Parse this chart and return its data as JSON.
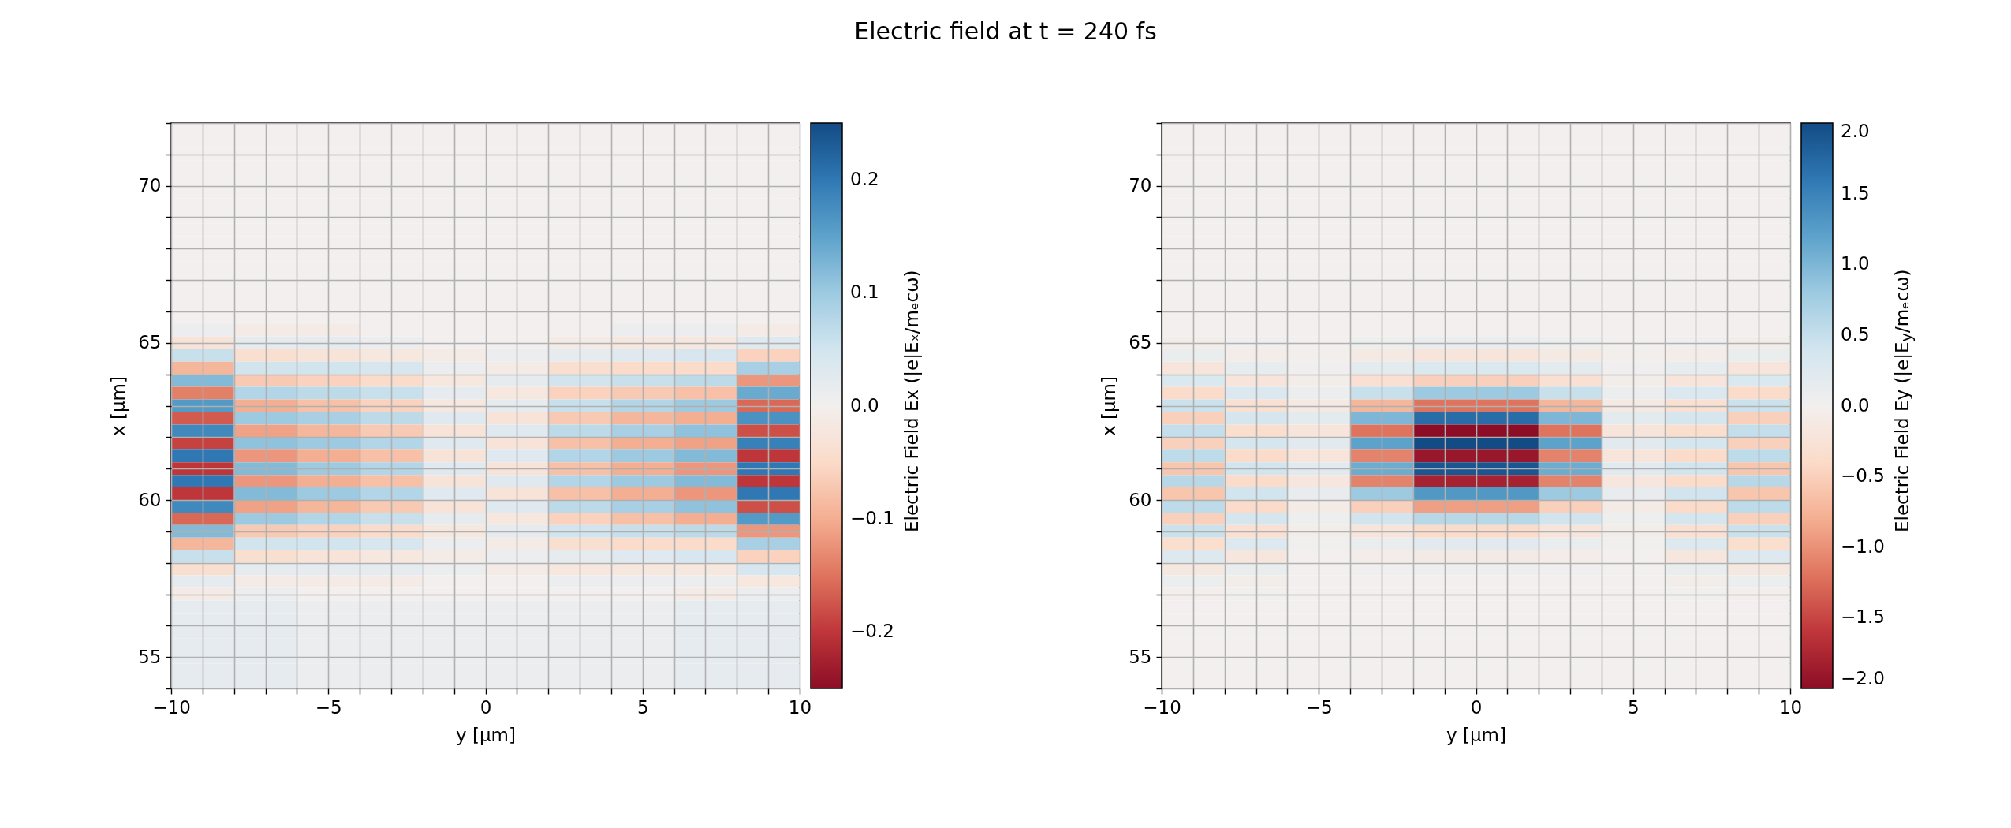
{
  "chart_data": [
    {
      "type": "other",
      "title": "Electric field at t = 240 fs"
    },
    {
      "type": "heatmap",
      "xlabel": "y [µm]",
      "ylabel": "x [µm]",
      "clabel": "Electric Field Ex (|e|Eₓ/mₑcω)",
      "xlim": [
        -10,
        10
      ],
      "ylim": [
        54,
        72
      ],
      "xticks": [
        -10,
        {
          "value": -9,
          "label": null
        },
        {
          "value": -8,
          "label": null
        },
        {
          "value": -7,
          "label": null
        },
        {
          "value": -6,
          "label": null
        },
        -5,
        {
          "value": -4,
          "label": null
        },
        {
          "value": -3,
          "label": null
        },
        {
          "value": -2,
          "label": null
        },
        {
          "value": -1,
          "label": null
        },
        0,
        {
          "value": 1,
          "label": null
        },
        {
          "value": 2,
          "label": null
        },
        {
          "value": 3,
          "label": null
        },
        {
          "value": 4,
          "label": null
        },
        5,
        {
          "value": 6,
          "label": null
        },
        {
          "value": 7,
          "label": null
        },
        {
          "value": 8,
          "label": null
        },
        {
          "value": 9,
          "label": null
        },
        10
      ],
      "yticks": [
        {
          "value": 54,
          "label": null
        },
        55,
        {
          "value": 56,
          "label": null
        },
        {
          "value": 57,
          "label": null
        },
        {
          "value": 58,
          "label": null
        },
        {
          "value": 59,
          "label": null
        },
        60,
        {
          "value": 61,
          "label": null
        },
        {
          "value": 62,
          "label": null
        },
        {
          "value": 63,
          "label": null
        },
        {
          "value": 64,
          "label": null
        },
        65,
        {
          "value": 66,
          "label": null
        },
        {
          "value": 67,
          "label": null
        },
        {
          "value": 68,
          "label": null
        },
        {
          "value": 69,
          "label": null
        },
        70,
        {
          "value": 71,
          "label": null
        },
        {
          "value": 72,
          "label": null
        }
      ],
      "clim": [
        -0.25,
        0.25
      ],
      "cticks": [
        {
          "value": -0.2,
          "label": "−0.2"
        },
        {
          "value": -0.1,
          "label": "−0.1"
        },
        {
          "value": 0,
          "label": "0.0"
        },
        {
          "value": 0.1,
          "label": "0.1"
        },
        {
          "value": 0.2,
          "label": "0.2"
        }
      ],
      "grid": true,
      "cells": [
        [
          0,
          0,
          0,
          0,
          0,
          0,
          0,
          0,
          0,
          0
        ],
        [
          0,
          0,
          0,
          0,
          0,
          0,
          0,
          0,
          0,
          0
        ],
        [
          0,
          0,
          0,
          0,
          0,
          0,
          0,
          0,
          0,
          0
        ],
        [
          0,
          0,
          0,
          0,
          0,
          0,
          0,
          0,
          0,
          0
        ],
        [
          0,
          0,
          0,
          0,
          0,
          0,
          0,
          0,
          0,
          0
        ],
        [
          0,
          0,
          0,
          0,
          0,
          0,
          0,
          0,
          0,
          0
        ],
        [
          0,
          0,
          0,
          0,
          0,
          0,
          0,
          0,
          0,
          0
        ],
        [
          0,
          0,
          0,
          0,
          0,
          0,
          0,
          0,
          0,
          0
        ],
        [
          0,
          0,
          0,
          0,
          0,
          0,
          0,
          0,
          0,
          0
        ],
        [
          0,
          0,
          0,
          0,
          0,
          0,
          0,
          0,
          0,
          0
        ],
        [
          0,
          0,
          0,
          0,
          0,
          0,
          0,
          0,
          0,
          0
        ],
        [
          0,
          0,
          0,
          0,
          0,
          0,
          0,
          0,
          0,
          0
        ],
        [
          0,
          0,
          0,
          0,
          0,
          0,
          0,
          0,
          0,
          0
        ],
        [
          0,
          0,
          0,
          0,
          0,
          0,
          0,
          0,
          0,
          0
        ],
        [
          0,
          0,
          0,
          0,
          0,
          0,
          0,
          0,
          0,
          0
        ],
        [
          0,
          0,
          0,
          0,
          0,
          0,
          0,
          0,
          0,
          0
        ],
        [
          0.01,
          -0.01,
          -0.01,
          0,
          0,
          0,
          0,
          0.01,
          0.01,
          -0.01
        ],
        [
          -0.03,
          0.02,
          0.02,
          0.01,
          0,
          0,
          -0.01,
          -0.02,
          -0.02,
          0.03
        ],
        [
          0.06,
          -0.04,
          -0.03,
          -0.02,
          -0.01,
          0.01,
          0.02,
          0.03,
          0.04,
          -0.06
        ],
        [
          -0.09,
          0.05,
          0.05,
          0.04,
          0.01,
          -0.01,
          -0.04,
          -0.05,
          -0.05,
          0.09
        ],
        [
          0.12,
          -0.07,
          -0.06,
          -0.05,
          -0.02,
          0.02,
          0.05,
          0.06,
          0.07,
          -0.12
        ],
        [
          -0.14,
          0.08,
          0.07,
          0.06,
          0.02,
          -0.02,
          -0.06,
          -0.07,
          -0.08,
          0.14
        ],
        [
          0.16,
          -0.1,
          -0.08,
          -0.06,
          -0.02,
          0.02,
          0.06,
          0.08,
          0.1,
          -0.16
        ],
        [
          -0.17,
          0.1,
          0.09,
          0.07,
          0.03,
          -0.03,
          -0.07,
          -0.09,
          -0.1,
          0.17
        ],
        [
          0.18,
          -0.11,
          -0.09,
          -0.07,
          -0.03,
          0.03,
          0.07,
          0.09,
          0.11,
          -0.18
        ],
        [
          -0.19,
          0.11,
          0.1,
          0.08,
          0.03,
          -0.03,
          -0.08,
          -0.1,
          -0.11,
          0.19
        ],
        [
          0.2,
          -0.12,
          -0.1,
          -0.08,
          -0.03,
          0.03,
          0.08,
          0.1,
          0.12,
          -0.2
        ],
        [
          -0.2,
          0.12,
          0.1,
          0.08,
          0.03,
          -0.03,
          -0.08,
          -0.1,
          -0.12,
          0.2
        ],
        [
          0.2,
          -0.12,
          -0.1,
          -0.08,
          -0.03,
          0.03,
          0.08,
          0.1,
          0.12,
          -0.2
        ],
        [
          -0.2,
          0.12,
          0.1,
          0.08,
          0.03,
          -0.03,
          -0.08,
          -0.1,
          -0.12,
          0.2
        ],
        [
          0.18,
          -0.11,
          -0.09,
          -0.07,
          -0.03,
          0.03,
          0.07,
          0.09,
          0.11,
          -0.18
        ],
        [
          -0.16,
          0.1,
          0.08,
          0.06,
          0.02,
          -0.02,
          -0.06,
          -0.08,
          -0.1,
          0.16
        ],
        [
          0.12,
          -0.07,
          -0.06,
          -0.05,
          -0.02,
          0.02,
          0.05,
          0.06,
          0.07,
          -0.12
        ],
        [
          -0.09,
          0.05,
          0.05,
          0.04,
          0.01,
          -0.01,
          -0.04,
          -0.05,
          -0.05,
          0.09
        ],
        [
          0.06,
          -0.04,
          -0.03,
          -0.02,
          -0.01,
          0.01,
          0.02,
          0.03,
          0.04,
          -0.06
        ],
        [
          -0.04,
          0.02,
          0.02,
          0.02,
          0.01,
          -0.01,
          -0.02,
          -0.02,
          -0.02,
          0.04
        ],
        [
          0.02,
          -0.01,
          -0.01,
          -0.01,
          0,
          0,
          0.01,
          0.01,
          0.01,
          -0.02
        ],
        [
          -0.01,
          0.01,
          0,
          0,
          0,
          0,
          0,
          0,
          -0.01,
          0.01
        ],
        [
          0.02,
          0.02,
          0.01,
          0.01,
          0.01,
          0.01,
          0.01,
          0.01,
          0.02,
          0.02
        ],
        [
          0.02,
          0.02,
          0.01,
          0.01,
          0.01,
          0.01,
          0.01,
          0.01,
          0.02,
          0.02
        ],
        [
          0.02,
          0.02,
          0.01,
          0.01,
          0.01,
          0.01,
          0.01,
          0.01,
          0.02,
          0.02
        ],
        [
          0.02,
          0.02,
          0.01,
          0.01,
          0.01,
          0.01,
          0.01,
          0.01,
          0.02,
          0.02
        ],
        [
          0.02,
          0.02,
          0.01,
          0.01,
          0.01,
          0.01,
          0.01,
          0.01,
          0.02,
          0.02
        ],
        [
          0.02,
          0.02,
          0.01,
          0.01,
          0.01,
          0.01,
          0.01,
          0.01,
          0.02,
          0.02
        ],
        [
          0.02,
          0.02,
          0.01,
          0.01,
          0.01,
          0.01,
          0.01,
          0.01,
          0.02,
          0.02
        ]
      ]
    },
    {
      "type": "heatmap",
      "xlabel": "y [µm]",
      "ylabel": "x [µm]",
      "clabel": "Electric Field Ey (|e|E$_{y}$/mₑcω)",
      "xlim": [
        -10,
        10
      ],
      "ylim": [
        54,
        72
      ],
      "xticks": [
        -10,
        {
          "value": -9,
          "label": null
        },
        {
          "value": -8,
          "label": null
        },
        {
          "value": -7,
          "label": null
        },
        {
          "value": -6,
          "label": null
        },
        -5,
        {
          "value": -4,
          "label": null
        },
        {
          "value": -3,
          "label": null
        },
        {
          "value": -2,
          "label": null
        },
        {
          "value": -1,
          "label": null
        },
        0,
        {
          "value": 1,
          "label": null
        },
        {
          "value": 2,
          "label": null
        },
        {
          "value": 3,
          "label": null
        },
        {
          "value": 4,
          "label": null
        },
        5,
        {
          "value": 6,
          "label": null
        },
        {
          "value": 7,
          "label": null
        },
        {
          "value": 8,
          "label": null
        },
        {
          "value": 9,
          "label": null
        },
        10
      ],
      "yticks": [
        {
          "value": 54,
          "label": null
        },
        55,
        {
          "value": 56,
          "label": null
        },
        {
          "value": 57,
          "label": null
        },
        {
          "value": 58,
          "label": null
        },
        {
          "value": 59,
          "label": null
        },
        60,
        {
          "value": 61,
          "label": null
        },
        {
          "value": 62,
          "label": null
        },
        {
          "value": 63,
          "label": null
        },
        {
          "value": 64,
          "label": null
        },
        65,
        {
          "value": 66,
          "label": null
        },
        {
          "value": 67,
          "label": null
        },
        {
          "value": 68,
          "label": null
        },
        {
          "value": 69,
          "label": null
        },
        70,
        {
          "value": 71,
          "label": null
        },
        {
          "value": 72,
          "label": null
        }
      ],
      "clim": [
        -2,
        2
      ],
      "cticks": [
        {
          "value": -2,
          "label": "−2.0"
        },
        {
          "value": -1.5,
          "label": "−1.5"
        },
        {
          "value": -1,
          "label": "−1.0"
        },
        {
          "value": -0.5,
          "label": "−0.5"
        },
        {
          "value": 0,
          "label": "0.0"
        },
        {
          "value": 0.5,
          "label": "0.5"
        },
        {
          "value": 1,
          "label": "1.0"
        },
        {
          "value": 1.5,
          "label": "1.5"
        },
        {
          "value": 2,
          "label": "2.0"
        }
      ],
      "grid": true,
      "cells": [
        [
          0,
          0,
          0,
          0,
          0,
          0,
          0,
          0,
          0,
          0
        ],
        [
          0,
          0,
          0,
          0,
          0,
          0,
          0,
          0,
          0,
          0
        ],
        [
          0,
          0,
          0,
          0,
          0,
          0,
          0,
          0,
          0,
          0
        ],
        [
          0,
          0,
          0,
          0,
          0,
          0,
          0,
          0,
          0,
          0
        ],
        [
          0,
          0,
          0,
          0,
          0,
          0,
          0,
          0,
          0,
          0
        ],
        [
          0,
          0,
          0,
          0,
          0,
          0,
          0,
          0,
          0,
          0
        ],
        [
          0,
          0,
          0,
          0,
          0,
          0,
          0,
          0,
          0,
          0
        ],
        [
          0,
          0,
          0,
          0,
          0,
          0,
          0,
          0,
          0,
          0
        ],
        [
          0,
          0,
          0,
          0,
          0,
          0,
          0,
          0,
          0,
          0
        ],
        [
          0,
          0,
          0,
          0,
          0,
          0,
          0,
          0,
          0,
          0
        ],
        [
          0,
          0,
          0,
          0,
          0,
          0,
          0,
          0,
          0,
          0
        ],
        [
          0,
          0,
          0,
          0,
          0,
          0,
          0,
          0,
          0,
          0
        ],
        [
          0,
          0,
          0,
          0,
          0,
          0,
          0,
          0,
          0,
          0
        ],
        [
          0,
          0,
          0,
          0,
          0,
          0,
          0,
          0,
          0,
          0
        ],
        [
          0,
          0,
          0,
          0,
          0,
          0,
          0,
          0,
          0,
          0
        ],
        [
          0,
          0,
          0,
          0,
          0,
          0,
          0,
          0,
          0,
          0
        ],
        [
          0,
          0,
          0,
          0,
          0,
          0,
          0,
          0,
          0,
          0
        ],
        [
          -0.05,
          0.03,
          0,
          0.06,
          0.1,
          0.1,
          0.06,
          0,
          0.03,
          -0.05
        ],
        [
          0.1,
          -0.07,
          -0.02,
          -0.12,
          -0.2,
          -0.2,
          -0.12,
          -0.02,
          -0.07,
          0.1
        ],
        [
          -0.2,
          0.14,
          0.03,
          0.18,
          0.3,
          0.3,
          0.18,
          0.03,
          0.14,
          -0.2
        ],
        [
          0.3,
          -0.2,
          -0.05,
          -0.3,
          -0.5,
          -0.5,
          -0.3,
          -0.05,
          -0.2,
          0.3
        ],
        [
          -0.4,
          0.28,
          0.08,
          0.48,
          0.8,
          0.8,
          0.48,
          0.08,
          0.28,
          -0.4
        ],
        [
          0.45,
          -0.3,
          -0.12,
          -0.72,
          -1.2,
          -1.2,
          -0.72,
          -0.12,
          -0.3,
          0.45
        ],
        [
          -0.5,
          0.35,
          0.17,
          1,
          1.7,
          1.7,
          1,
          0.17,
          0.35,
          -0.5
        ],
        [
          0.5,
          -0.35,
          -0.2,
          -1.2,
          -2,
          -2,
          -1.2,
          -0.2,
          -0.35,
          0.5
        ],
        [
          -0.5,
          0.35,
          0.2,
          1.2,
          2,
          2,
          1.2,
          0.2,
          0.35,
          -0.5
        ],
        [
          0.55,
          -0.4,
          -0.2,
          -1.1,
          -1.9,
          -1.9,
          -1.1,
          -0.2,
          -0.4,
          0.55
        ],
        [
          -0.6,
          0.4,
          0.2,
          1.1,
          1.9,
          1.9,
          1.1,
          0.2,
          0.4,
          -0.6
        ],
        [
          0.6,
          -0.4,
          -0.18,
          -1.1,
          -1.8,
          -1.8,
          -1.1,
          -0.18,
          -0.4,
          0.6
        ],
        [
          -0.6,
          0.4,
          0.13,
          0.8,
          1.3,
          1.3,
          0.8,
          0.13,
          0.4,
          -0.6
        ],
        [
          0.55,
          -0.4,
          -0.09,
          -0.5,
          -0.9,
          -0.9,
          -0.5,
          -0.09,
          -0.4,
          0.55
        ],
        [
          -0.5,
          0.35,
          0.06,
          0.4,
          0.6,
          0.6,
          0.4,
          0.06,
          0.35,
          -0.5
        ],
        [
          0.45,
          -0.3,
          -0.04,
          -0.2,
          -0.4,
          -0.4,
          -0.2,
          -0.04,
          -0.3,
          0.45
        ],
        [
          -0.35,
          0.25,
          0.02,
          0.1,
          0.2,
          0.2,
          0.1,
          0.02,
          0.25,
          -0.35
        ],
        [
          0.25,
          -0.18,
          0,
          -0.06,
          -0.1,
          -0.1,
          -0.06,
          0,
          -0.18,
          0.25
        ],
        [
          -0.15,
          0.1,
          0,
          0.03,
          0.05,
          0.05,
          0.03,
          0,
          0.1,
          -0.15
        ],
        [
          0.08,
          -0.05,
          0,
          0,
          0,
          0,
          0,
          0,
          -0.05,
          0.08
        ],
        [
          -0.03,
          0.02,
          0,
          0,
          0,
          0,
          0,
          0,
          0.02,
          -0.03
        ],
        [
          0,
          0,
          0,
          0,
          0,
          0,
          0,
          0,
          0,
          0
        ],
        [
          0,
          0,
          0,
          0,
          0,
          0,
          0,
          0,
          0,
          0
        ],
        [
          0,
          0,
          0,
          0,
          0,
          0,
          0,
          0,
          0,
          0
        ],
        [
          0,
          0,
          0,
          0,
          0,
          0,
          0,
          0,
          0,
          0
        ],
        [
          0,
          0,
          0,
          0,
          0,
          0,
          0,
          0,
          0,
          0
        ],
        [
          0,
          0,
          0,
          0,
          0,
          0,
          0,
          0,
          0,
          0
        ],
        [
          0,
          0,
          0,
          0,
          0,
          0,
          0,
          0,
          0,
          0
        ]
      ]
    }
  ]
}
